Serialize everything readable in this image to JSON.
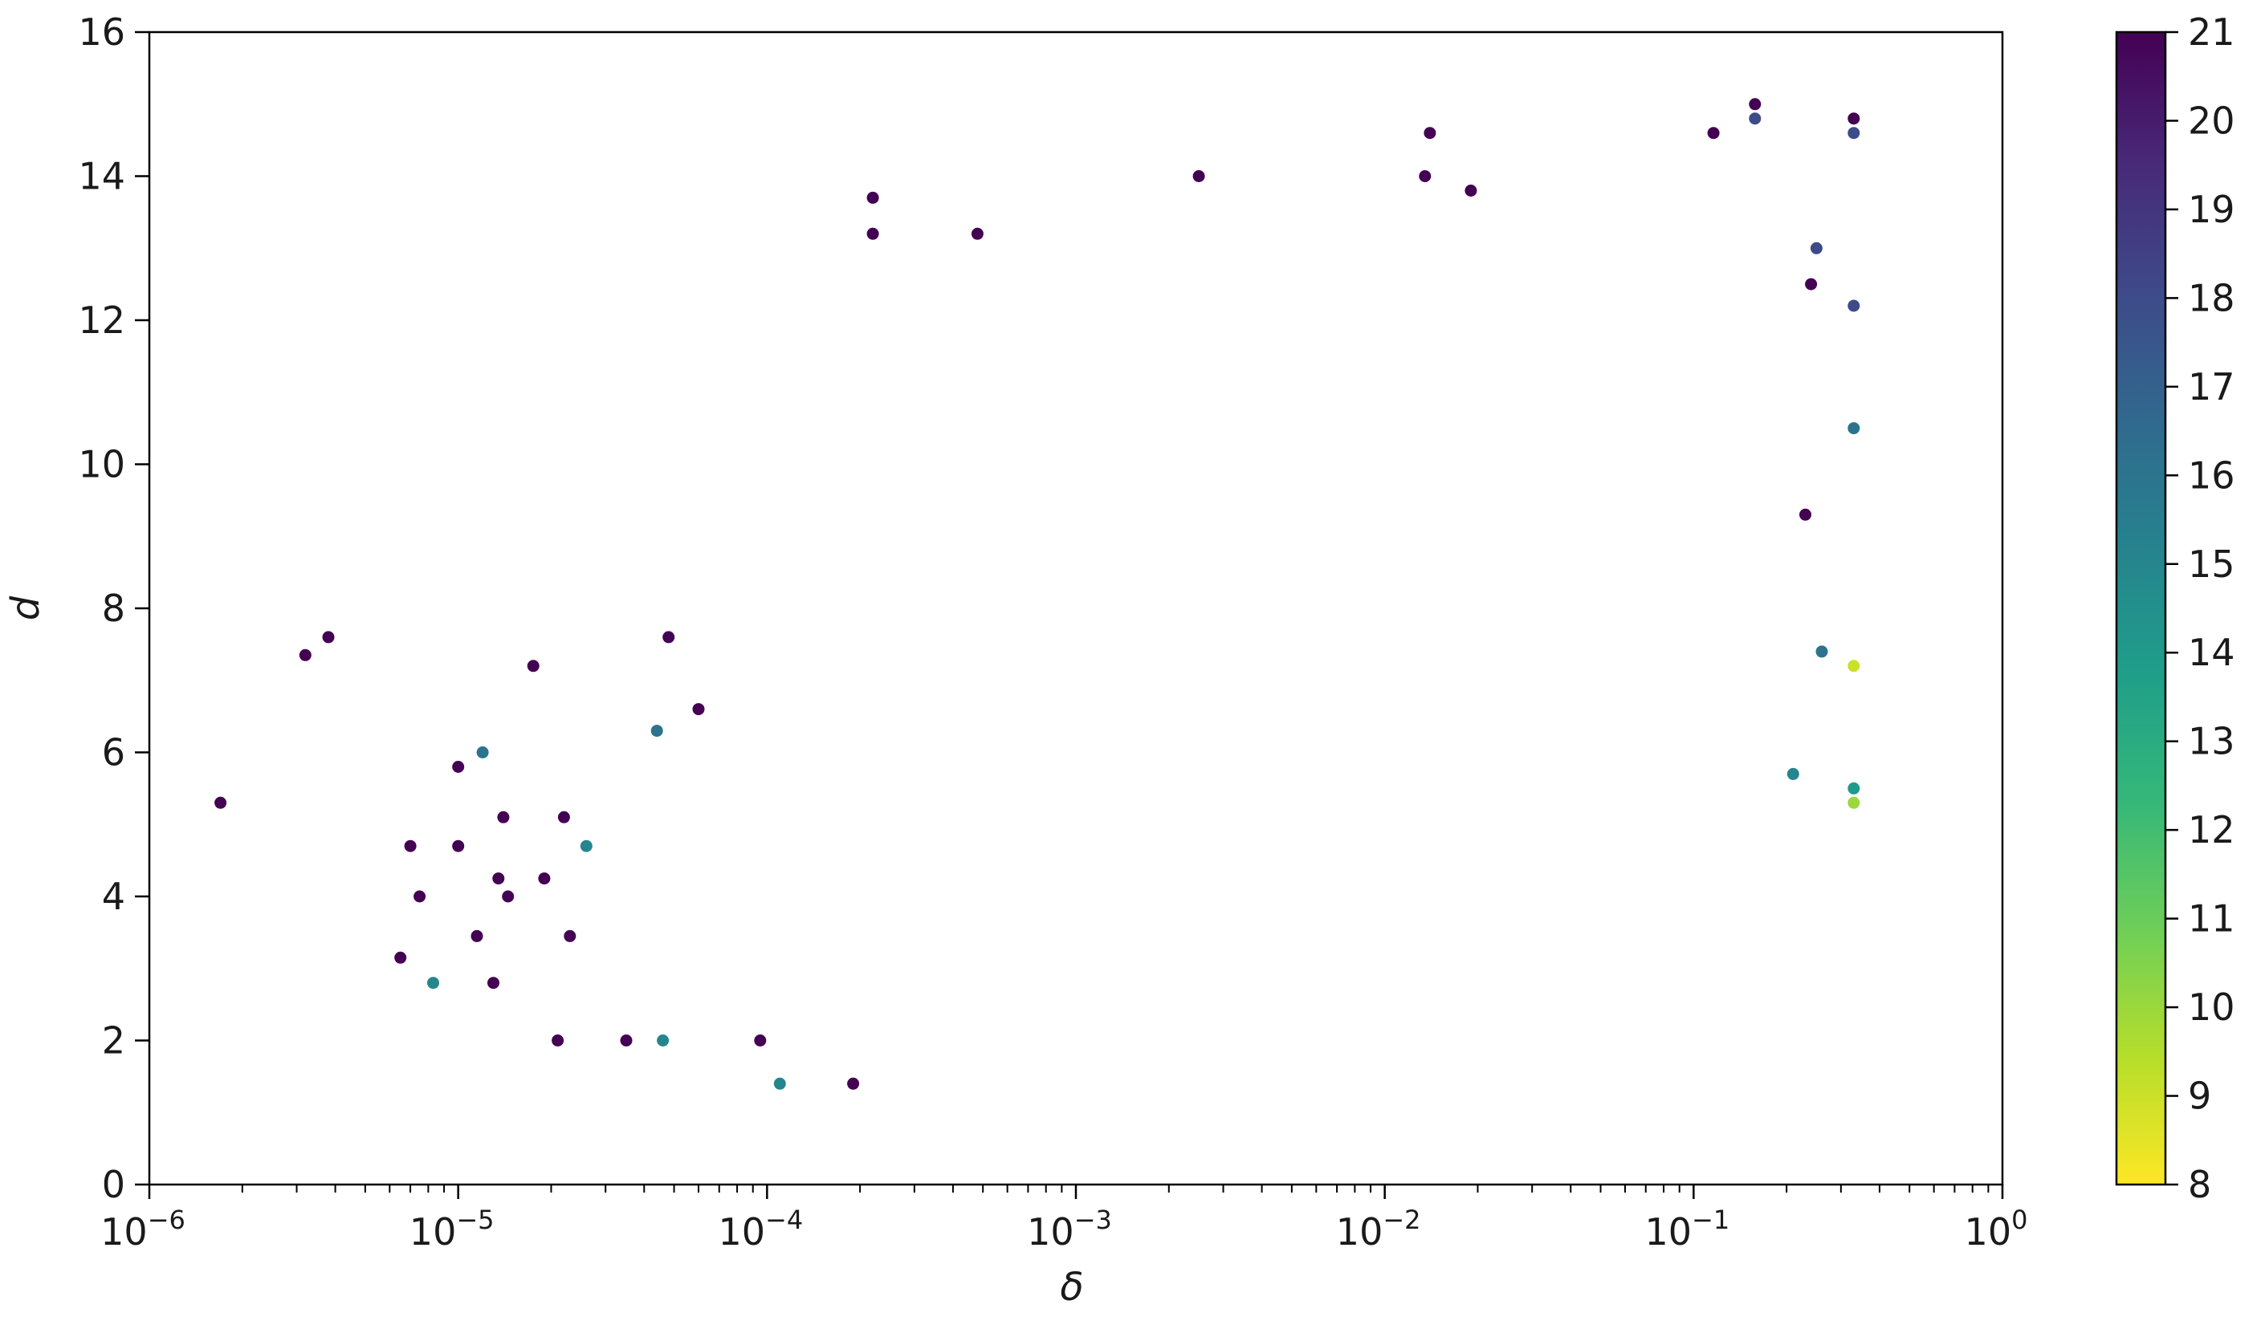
{
  "chart_data": {
    "type": "scatter",
    "title": "",
    "xlabel": "δ",
    "ylabel": "d",
    "xscale": "log",
    "xlim": [
      1e-06,
      1
    ],
    "ylim": [
      0,
      16
    ],
    "x_ticks": [
      {
        "value": 1e-06,
        "base": "10",
        "exp": "−6"
      },
      {
        "value": 1e-05,
        "base": "10",
        "exp": "−5"
      },
      {
        "value": 0.0001,
        "base": "10",
        "exp": "−4"
      },
      {
        "value": 0.001,
        "base": "10",
        "exp": "−3"
      },
      {
        "value": 0.01,
        "base": "10",
        "exp": "−2"
      },
      {
        "value": 0.1,
        "base": "10",
        "exp": "−1"
      },
      {
        "value": 1,
        "base": "10",
        "exp": "0"
      }
    ],
    "y_ticks": [
      "0",
      "2",
      "4",
      "6",
      "8",
      "10",
      "12",
      "14",
      "16"
    ],
    "grid": false,
    "legend": "none",
    "colorbar": {
      "colormap": "viridis",
      "reversed": true,
      "range": [
        8,
        21
      ],
      "ticks": [
        "8",
        "9",
        "10",
        "11",
        "12",
        "13",
        "14",
        "15",
        "16",
        "17",
        "18",
        "19",
        "20",
        "21"
      ],
      "stops": [
        "#440154",
        "#482878",
        "#3e4989",
        "#31688e",
        "#26828e",
        "#1f9e89",
        "#35b779",
        "#6ece58",
        "#b5de2b",
        "#fde725"
      ]
    },
    "points": [
      [
        1.7e-06,
        5.3,
        21
      ],
      [
        3.2e-06,
        7.35,
        21
      ],
      [
        3.8e-06,
        7.6,
        21
      ],
      [
        1.75e-05,
        7.2,
        21
      ],
      [
        4.8e-05,
        7.6,
        21
      ],
      [
        6.5e-06,
        3.15,
        21
      ],
      [
        8.3e-06,
        2.8,
        15
      ],
      [
        7e-06,
        4.7,
        21
      ],
      [
        7.5e-06,
        4.0,
        21
      ],
      [
        1e-05,
        5.8,
        21
      ],
      [
        1e-05,
        4.7,
        21
      ],
      [
        1.2e-05,
        6.0,
        16
      ],
      [
        1.15e-05,
        3.45,
        21
      ],
      [
        1.3e-05,
        2.8,
        21
      ],
      [
        1.4e-05,
        5.1,
        21
      ],
      [
        1.35e-05,
        4.25,
        21
      ],
      [
        1.45e-05,
        4.0,
        21
      ],
      [
        1.9e-05,
        4.25,
        21
      ],
      [
        2.1e-05,
        2.0,
        21
      ],
      [
        2.2e-05,
        5.1,
        21
      ],
      [
        2.3e-05,
        3.45,
        21
      ],
      [
        2.6e-05,
        4.7,
        15
      ],
      [
        3.5e-05,
        2.0,
        21
      ],
      [
        4.6e-05,
        2.0,
        15
      ],
      [
        4.4e-05,
        6.3,
        16
      ],
      [
        6e-05,
        6.6,
        21
      ],
      [
        9.5e-05,
        2.0,
        21
      ],
      [
        0.00011,
        1.4,
        15
      ],
      [
        0.00019,
        1.4,
        21
      ],
      [
        0.00022,
        13.7,
        21
      ],
      [
        0.00022,
        13.2,
        21
      ],
      [
        0.00048,
        13.2,
        21
      ],
      [
        0.0025,
        14.0,
        21
      ],
      [
        0.014,
        14.6,
        21
      ],
      [
        0.019,
        13.8,
        21
      ],
      [
        0.0135,
        14.0,
        21
      ],
      [
        0.116,
        14.6,
        21
      ],
      [
        0.158,
        15.0,
        21
      ],
      [
        0.158,
        14.8,
        18
      ],
      [
        0.33,
        14.8,
        21
      ],
      [
        0.33,
        14.6,
        18
      ],
      [
        0.33,
        5.5,
        14
      ],
      [
        0.33,
        5.3,
        10
      ],
      [
        0.33,
        7.2,
        9
      ],
      [
        0.33,
        10.5,
        16
      ],
      [
        0.24,
        12.5,
        21
      ],
      [
        0.25,
        13.0,
        18
      ],
      [
        0.26,
        7.4,
        16
      ],
      [
        0.23,
        9.3,
        21
      ],
      [
        0.21,
        5.7,
        15
      ],
      [
        0.33,
        12.2,
        18
      ]
    ]
  }
}
